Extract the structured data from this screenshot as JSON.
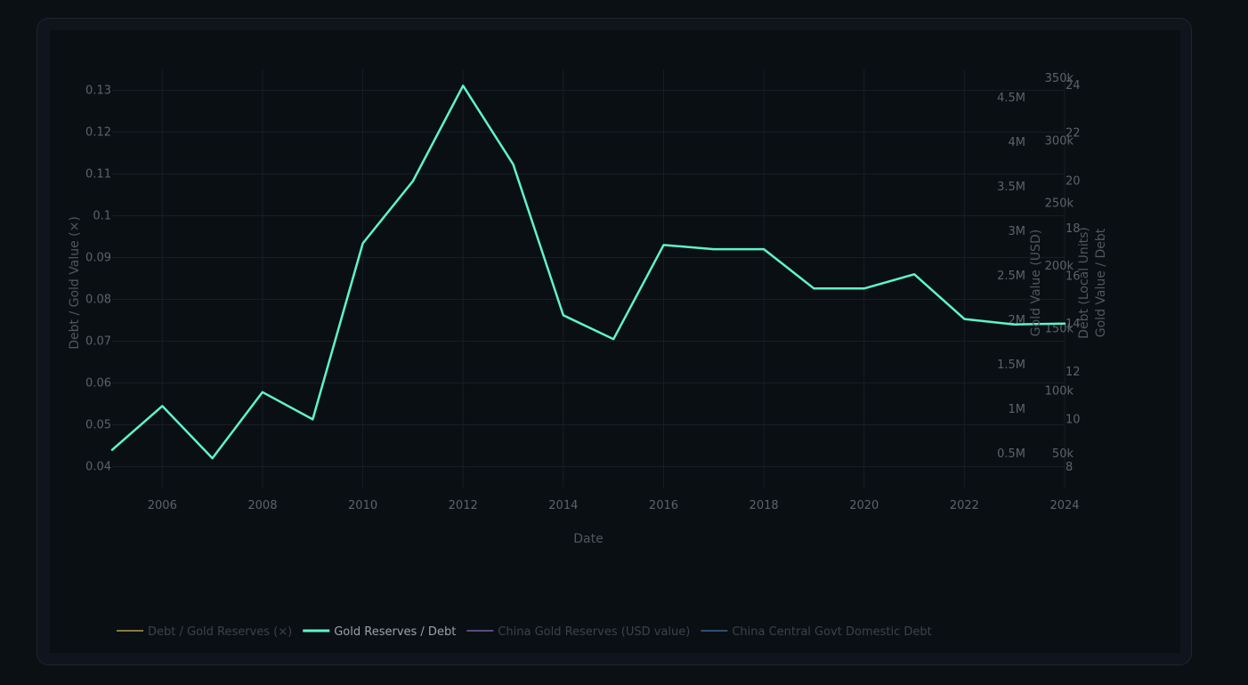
{
  "chart_data": {
    "type": "line",
    "xlabel": "Date",
    "ylabel_left": "Debt / Gold Value (×)",
    "ylabel_right": [
      "Gold Value (USD)",
      "Debt (Local Units)",
      "Gold Value / Debt"
    ],
    "x_range": [
      2005,
      2024
    ],
    "x_ticks": [
      "2006",
      "2008",
      "2010",
      "2012",
      "2014",
      "2016",
      "2018",
      "2020",
      "2022",
      "2024"
    ],
    "y_left": {
      "range": [
        0.035,
        0.135
      ],
      "ticks": [
        0.04,
        0.05,
        0.06,
        0.07,
        0.08,
        0.09,
        0.1,
        0.11,
        0.12,
        0.13
      ],
      "tick_labels": [
        "0.04",
        "0.05",
        "0.06",
        "0.07",
        "0.08",
        "0.09",
        "0.1",
        "0.11",
        "0.12",
        "0.13"
      ]
    },
    "y_right_usd": {
      "tick_labels": [
        "0.5M",
        "1M",
        "1.5M",
        "2M",
        "2.5M",
        "3M",
        "3.5M",
        "4M",
        "4.5M"
      ]
    },
    "y_right_debt": {
      "tick_labels": [
        "50k",
        "100k",
        "150k",
        "200k",
        "250k",
        "300k",
        "350k"
      ]
    },
    "y_right_ratio": {
      "tick_labels": [
        "8",
        "10",
        "12",
        "14",
        "16",
        "18",
        "20",
        "22",
        "24"
      ]
    },
    "grid": true,
    "legend_position": "bottom-left",
    "series": [
      {
        "name": "Debt / Gold Reserves (×)",
        "color": "#8a7a3e",
        "visible": false
      },
      {
        "name": "Gold Reserves / Debt",
        "color": "#5ef5c8",
        "visible": true,
        "x": [
          2005,
          2006,
          2007,
          2008,
          2009,
          2010,
          2011,
          2012,
          2013,
          2014,
          2015,
          2016,
          2017,
          2018,
          2019,
          2020,
          2021,
          2022,
          2023,
          2024
        ],
        "y": [
          0.044,
          0.0545,
          0.042,
          0.0578,
          0.0513,
          0.0934,
          0.1083,
          0.1311,
          0.1123,
          0.0762,
          0.0705,
          0.093,
          0.092,
          0.092,
          0.0826,
          0.0826,
          0.086,
          0.0753,
          0.074,
          0.0742
        ]
      },
      {
        "name": "China Gold Reserves (USD value)",
        "color": "#5a4a86",
        "visible": false
      },
      {
        "name": "China Central Govt Domestic Debt",
        "color": "#2e4f75",
        "visible": false
      }
    ]
  }
}
